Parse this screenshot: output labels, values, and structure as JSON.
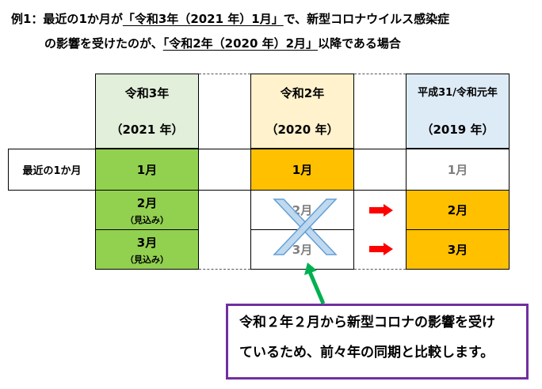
{
  "header": {
    "line1_prefix": "例1：最近の1か月が",
    "line1_highlight": "「令和3年（2021 年）1月」",
    "line1_suffix": "で、新型コロナウイルス感染症",
    "line2_prefix": "の影響を受けたのが、",
    "line2_highlight": "「令和2年（2020 年）2月」",
    "line2_suffix": "以降である場合"
  },
  "columns": [
    {
      "era": "令和3年",
      "year": "（2021 年）",
      "color": "#e2efda"
    },
    {
      "era": "令和2年",
      "year": "（2020 年）",
      "color": "#fff2cc"
    },
    {
      "era": "平成31/令和元年",
      "year": "（2019 年）",
      "color": "#ddebf7"
    }
  ],
  "rows": [
    {
      "label": "最近の1か月",
      "col1": "1月",
      "col2": "1月",
      "col3": "1月"
    },
    {
      "col1": "2月",
      "col1_note": "（見込み）",
      "col2": "2月",
      "col3": "2月"
    },
    {
      "col1": "3月",
      "col1_note": "（見込み）",
      "col2": "3月",
      "col3": "3月"
    }
  ],
  "colors": {
    "green": "#92d050",
    "orange": "#ffc000",
    "arrow_red": "#ff0000",
    "arrow_green": "#00b050",
    "cross_blue": "#bdd7ee",
    "callout_border": "#7030a0"
  },
  "callout": {
    "line1": "令和２年２月から新型コロナの影響を受け",
    "line2": "ているため、前々年の同期と比較します。"
  }
}
